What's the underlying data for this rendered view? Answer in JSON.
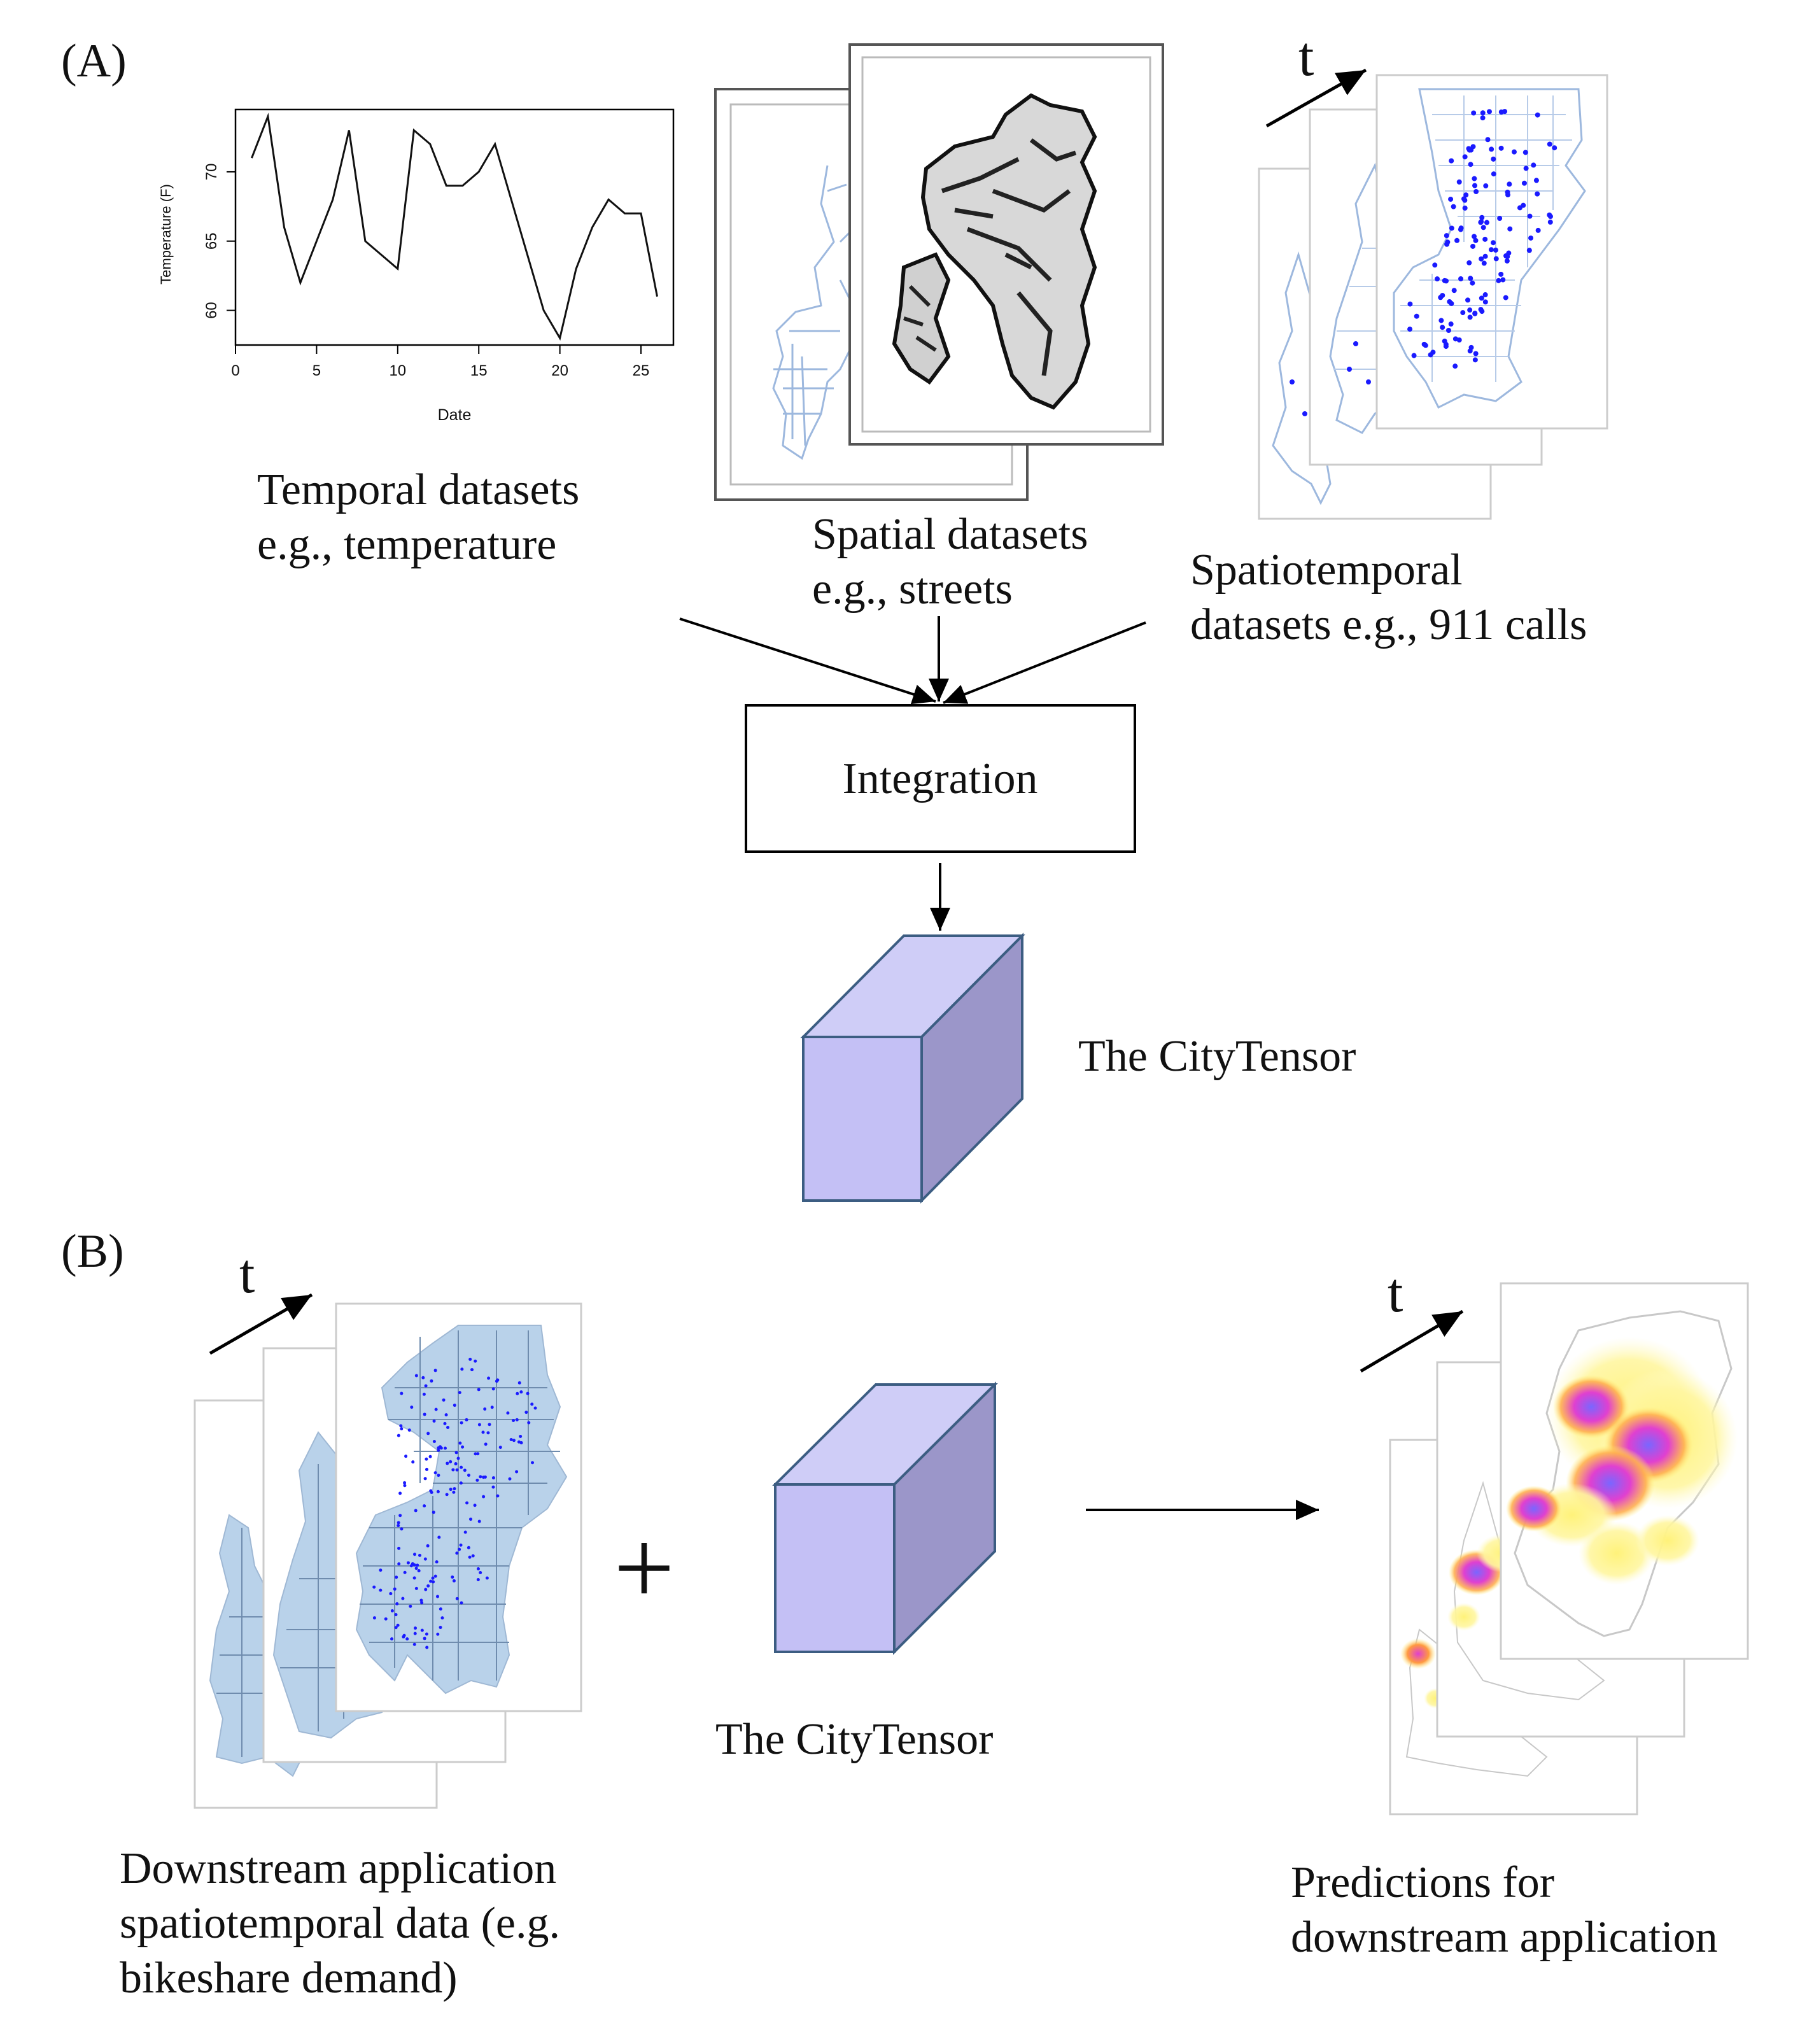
{
  "panels": {
    "a_label": "(A)",
    "b_label": "(B)"
  },
  "captions": {
    "temporal": [
      "Temporal datasets",
      "e.g., temperature"
    ],
    "spatial": [
      "Spatial datasets",
      "e.g., streets"
    ],
    "spatiotemporal": [
      "Spatiotemporal",
      "datasets e.g., 911 calls"
    ],
    "integration": "Integration",
    "citytensor_a": "The CityTensor",
    "citytensor_b": "The CityTensor",
    "downstream": [
      "Downstream application",
      "spatiotemporal data (e.g.",
      "bikeshare demand)"
    ],
    "predictions": [
      "Predictions for",
      "downstream application"
    ],
    "time_symbol": "t",
    "plus": "+"
  },
  "colors": {
    "cube_front": "#c4c0f5",
    "cube_top": "#cfcdf7",
    "cube_side": "#9b96c9",
    "cube_edge": "#3c5d82",
    "street_line": "#9db8de",
    "call_point": "#1a1aff",
    "bike_fill": "#b9d2ea",
    "heat_yellow": "#fff27a",
    "heat_magenta": "#e040d0",
    "heat_blue": "#6a5cff"
  },
  "chart_data": {
    "type": "line",
    "title": "",
    "xlabel": "Date",
    "ylabel": "Temperature (F)",
    "xlim": [
      0,
      27
    ],
    "ylim": [
      57.5,
      74.5
    ],
    "xticks": [
      0,
      5,
      10,
      15,
      20,
      25
    ],
    "yticks": [
      60,
      65,
      70
    ],
    "series": [
      {
        "x": [
          1,
          2,
          3,
          4,
          5,
          6,
          7,
          8,
          9,
          10,
          11,
          12,
          13,
          14,
          15,
          16,
          17,
          18,
          19,
          20,
          21,
          22,
          23,
          24,
          25,
          26
        ],
        "values": [
          71,
          74,
          66,
          62,
          65,
          68,
          73,
          65,
          64,
          63,
          73,
          72,
          69,
          69,
          70,
          72,
          68,
          64,
          60,
          58,
          63,
          66,
          68,
          67,
          67,
          61
        ]
      }
    ]
  }
}
